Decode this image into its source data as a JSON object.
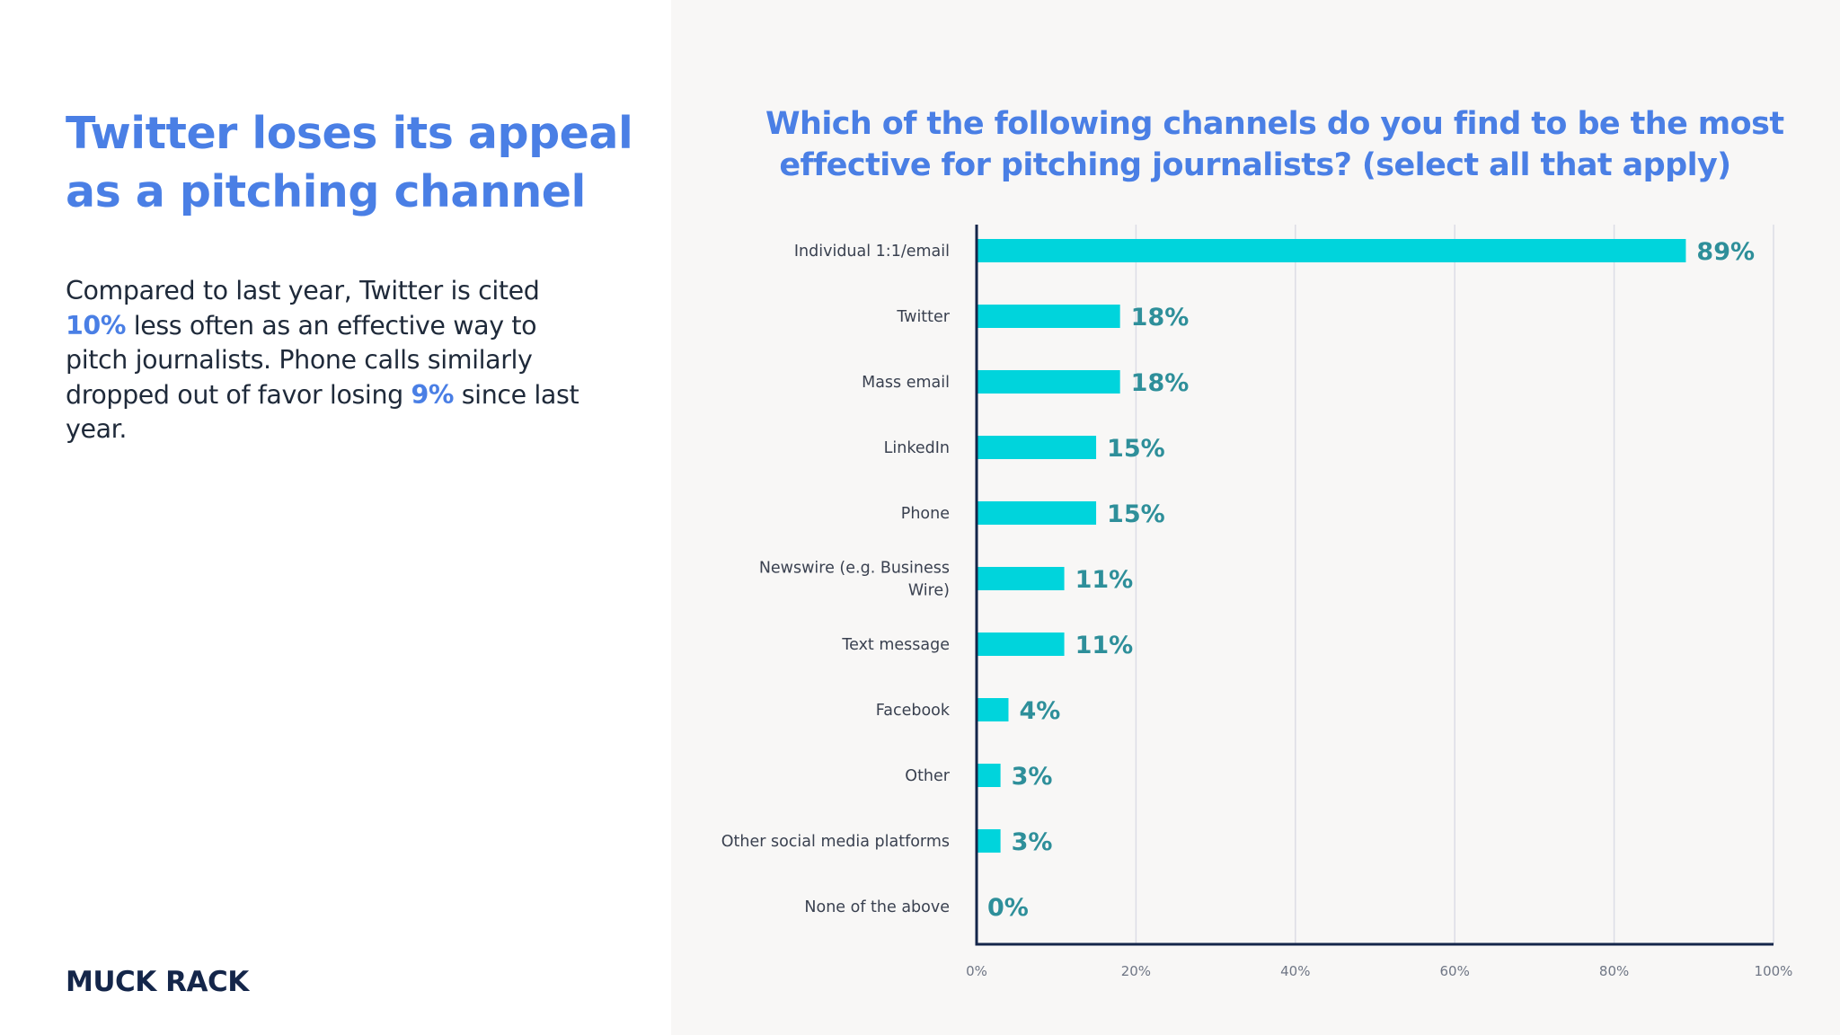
{
  "headline": {
    "line1": "Twitter loses its appeal",
    "line2": "as a pitching channel"
  },
  "body": {
    "part1": "Compared to last year, Twitter is cited ",
    "highlight1": "10%",
    "part2": " less often as an effective way to pitch journalists. Phone calls similarly dropped out of favor losing ",
    "highlight2": "9%",
    "part3": " since last year."
  },
  "logo": "MUCK RACK",
  "colors": {
    "accent": "#4a7fe5",
    "bar": "#00d4dc",
    "value_text": "#2e8f9a",
    "axis": "#14264a",
    "grid": "#dcdde6"
  },
  "chart_data": {
    "type": "bar",
    "orientation": "horizontal",
    "title_line1": "Which of the following channels do you find to be the most",
    "title_line2": "effective for pitching journalists? (select all that apply)",
    "categories": [
      [
        "Individual 1:1/email"
      ],
      [
        "Twitter"
      ],
      [
        "Mass email"
      ],
      [
        "LinkedIn"
      ],
      [
        "Phone"
      ],
      [
        "Newswire (e.g. Business",
        "Wire)"
      ],
      [
        "Text message"
      ],
      [
        "Facebook"
      ],
      [
        "Other"
      ],
      [
        "Other social media platforms"
      ],
      [
        "None of the above"
      ]
    ],
    "values": [
      89,
      18,
      18,
      15,
      15,
      11,
      11,
      4,
      3,
      3,
      0
    ],
    "value_labels": [
      "89%",
      "18%",
      "18%",
      "15%",
      "15%",
      "11%",
      "11%",
      "4%",
      "3%",
      "3%",
      "0%"
    ],
    "xlim": [
      0,
      100
    ],
    "xticks": [
      0,
      20,
      40,
      60,
      80,
      100
    ],
    "xtick_labels": [
      "0%",
      "20%",
      "40%",
      "60%",
      "80%",
      "100%"
    ],
    "grid": true,
    "xlabel": "",
    "ylabel": ""
  }
}
